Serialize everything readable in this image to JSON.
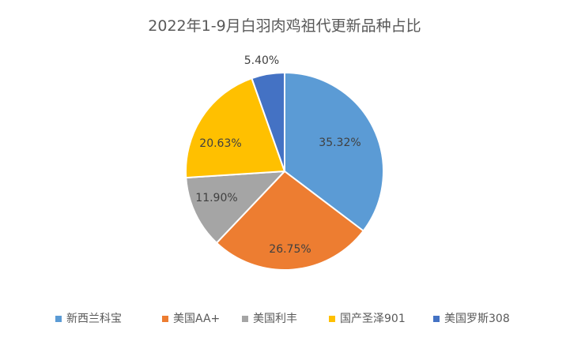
{
  "chart_data": {
    "type": "pie",
    "title": "2022年1-9月白羽肉鸡祖代更新品种占比",
    "categories": [
      "新西兰科宝",
      "美国AA+",
      "美国利丰",
      "国产圣泽901",
      "美国罗斯308"
    ],
    "values": [
      35.32,
      26.75,
      11.9,
      20.63,
      5.4
    ],
    "data_labels": [
      "35.32%",
      "26.75%",
      "11.90%",
      "20.63%",
      "5.40%"
    ],
    "colors": [
      "#5B9BD5",
      "#ED7D31",
      "#A5A5A5",
      "#FFC000",
      "#4472C4"
    ],
    "legend_position": "bottom",
    "start_angle": "top, clockwise"
  }
}
